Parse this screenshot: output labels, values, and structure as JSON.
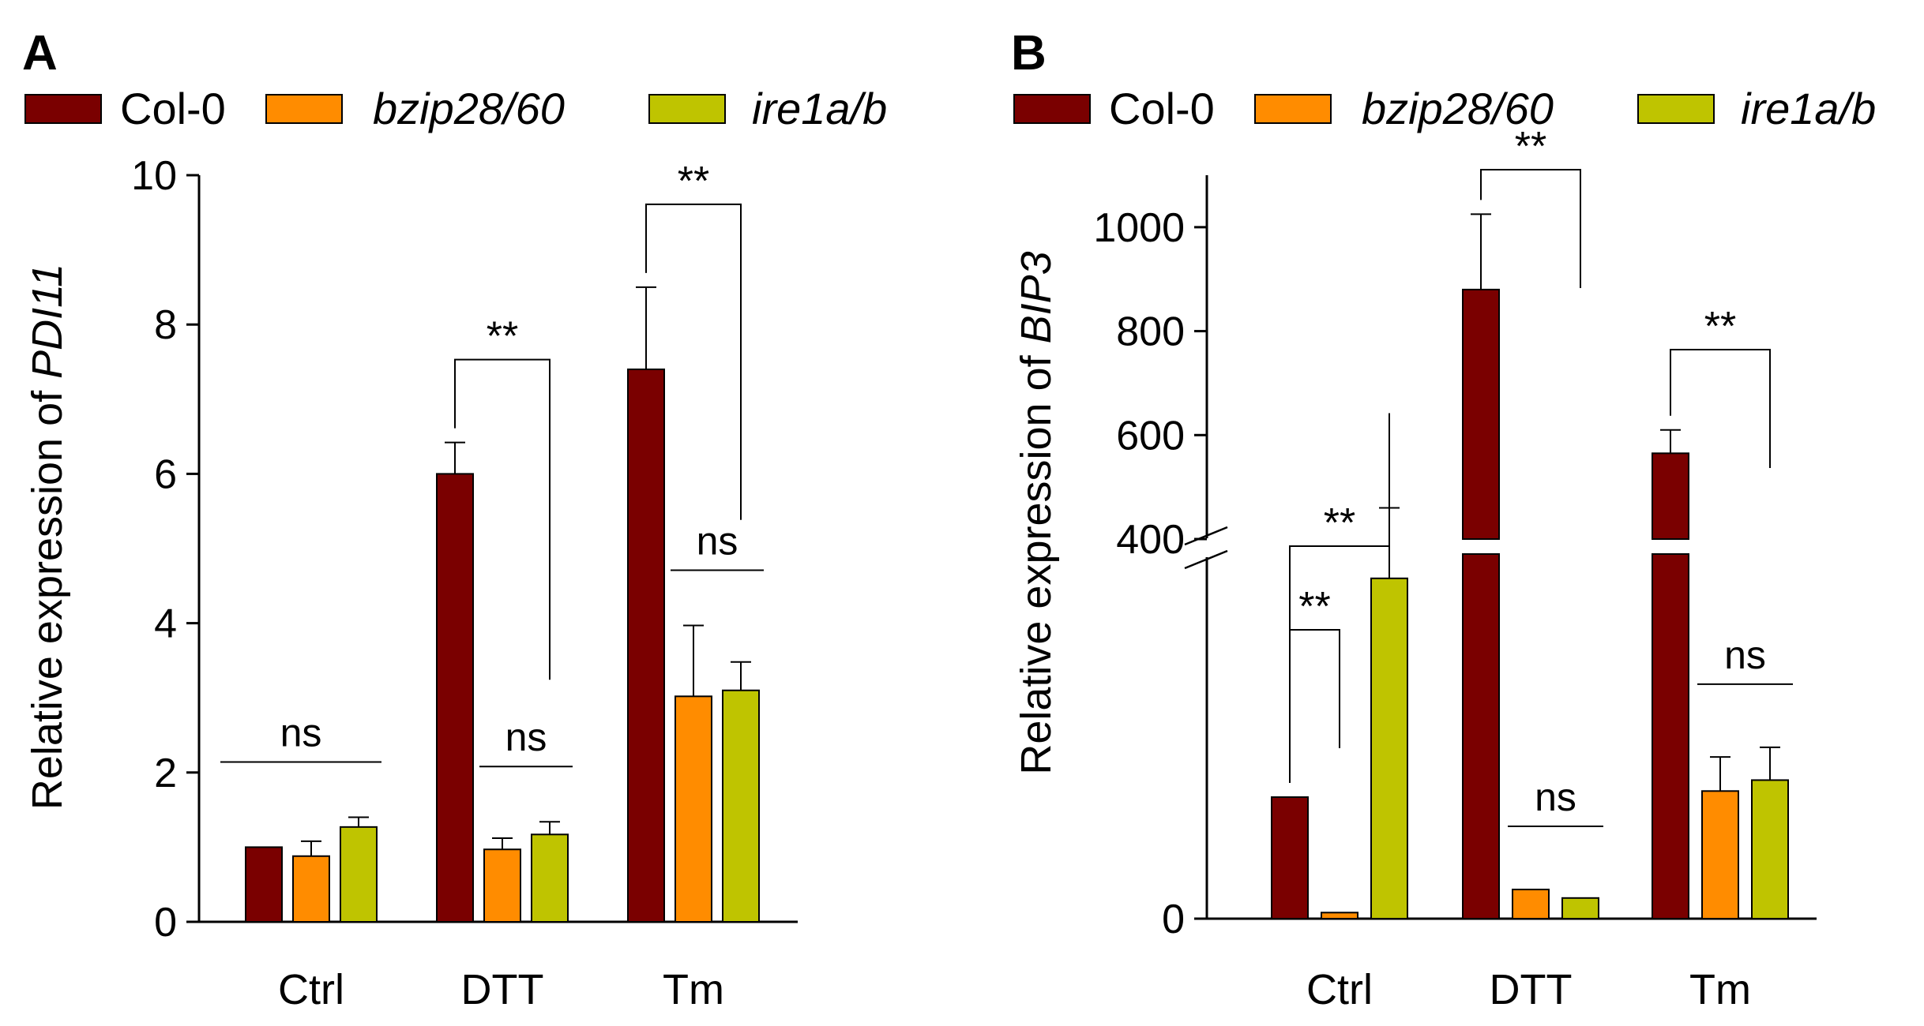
{
  "legend": {
    "entries": [
      {
        "label": "Col-0",
        "color": "#7a0000",
        "italic": false
      },
      {
        "label": "bzip28/60",
        "color": "#ff8c00",
        "italic": true
      },
      {
        "label": "ire1a/b",
        "color": "#bfc400",
        "italic": true
      }
    ]
  },
  "chart_data": [
    {
      "panel": "A",
      "type": "bar",
      "title": "",
      "xlabel": "",
      "ylabel_prefix": "Relative expression of ",
      "ylabel_gene": "PDI11",
      "categories": [
        "Ctrl",
        "DTT",
        "Tm"
      ],
      "ylim": [
        0,
        10
      ],
      "yticks": [
        0,
        2,
        4,
        6,
        8,
        10
      ],
      "series": [
        {
          "name": "Col-0",
          "values": [
            1.0,
            6.0,
            7.4
          ],
          "errors": [
            0.0,
            0.42,
            1.1
          ]
        },
        {
          "name": "bzip28/60",
          "values": [
            0.88,
            0.97,
            3.02
          ],
          "errors": [
            0.2,
            0.15,
            0.95
          ]
        },
        {
          "name": "ire1a/b",
          "values": [
            1.27,
            1.17,
            3.1
          ],
          "errors": [
            0.13,
            0.17,
            0.38
          ]
        }
      ],
      "annotations": [
        {
          "text": "ns",
          "category": 0,
          "type": "line",
          "from_series": 0,
          "to_series": 2
        },
        {
          "text": "**",
          "category": 1,
          "type": "bracket",
          "from_series": 0,
          "to_series": 2
        },
        {
          "text": "ns",
          "category": 1,
          "type": "line",
          "from_series": 1,
          "to_series": 2
        },
        {
          "text": "**",
          "category": 2,
          "type": "bracket",
          "from_series": 0,
          "to_series": 2
        },
        {
          "text": "ns",
          "category": 2,
          "type": "line",
          "from_series": 1,
          "to_series": 2
        }
      ]
    },
    {
      "panel": "B",
      "type": "bar",
      "title": "",
      "xlabel": "",
      "ylabel_prefix": "Relative expression of ",
      "ylabel_gene": "BIP3",
      "categories": [
        "Ctrl",
        "DTT",
        "Tm"
      ],
      "ylim": [
        0,
        1100
      ],
      "yticks": [
        0,
        400,
        600,
        800,
        1000
      ],
      "axis_break": {
        "lower_range": [
          0,
          30
        ],
        "upper_range": [
          400,
          1100
        ]
      },
      "series": [
        {
          "name": "Col-0",
          "values": [
            10,
            880,
            565
          ],
          "errors": [
            0,
            145,
            45
          ]
        },
        {
          "name": "bzip28/60",
          "values": [
            0.5,
            2.4,
            10.5
          ],
          "errors": [
            0,
            0,
            2.8
          ]
        },
        {
          "name": "ire1a/b",
          "values": [
            28,
            1.7,
            11.4
          ],
          "errors": [
            5.8,
            0,
            2.7
          ]
        }
      ],
      "annotations": [
        {
          "text": "**",
          "category": 0,
          "type": "bracket",
          "from_series": 0,
          "to_series": 1
        },
        {
          "text": "**",
          "category": 0,
          "type": "bracket",
          "from_series": 0,
          "to_series": 2
        },
        {
          "text": "**",
          "category": 1,
          "type": "bracket",
          "from_series": 0,
          "to_series": 2
        },
        {
          "text": "**",
          "category": 2,
          "type": "bracket",
          "from_series": 0,
          "to_series": 2
        },
        {
          "text": "ns",
          "category": 1,
          "type": "line",
          "from_series": 1,
          "to_series": 2
        },
        {
          "text": "ns",
          "category": 2,
          "type": "line",
          "from_series": 1,
          "to_series": 2
        }
      ]
    }
  ]
}
